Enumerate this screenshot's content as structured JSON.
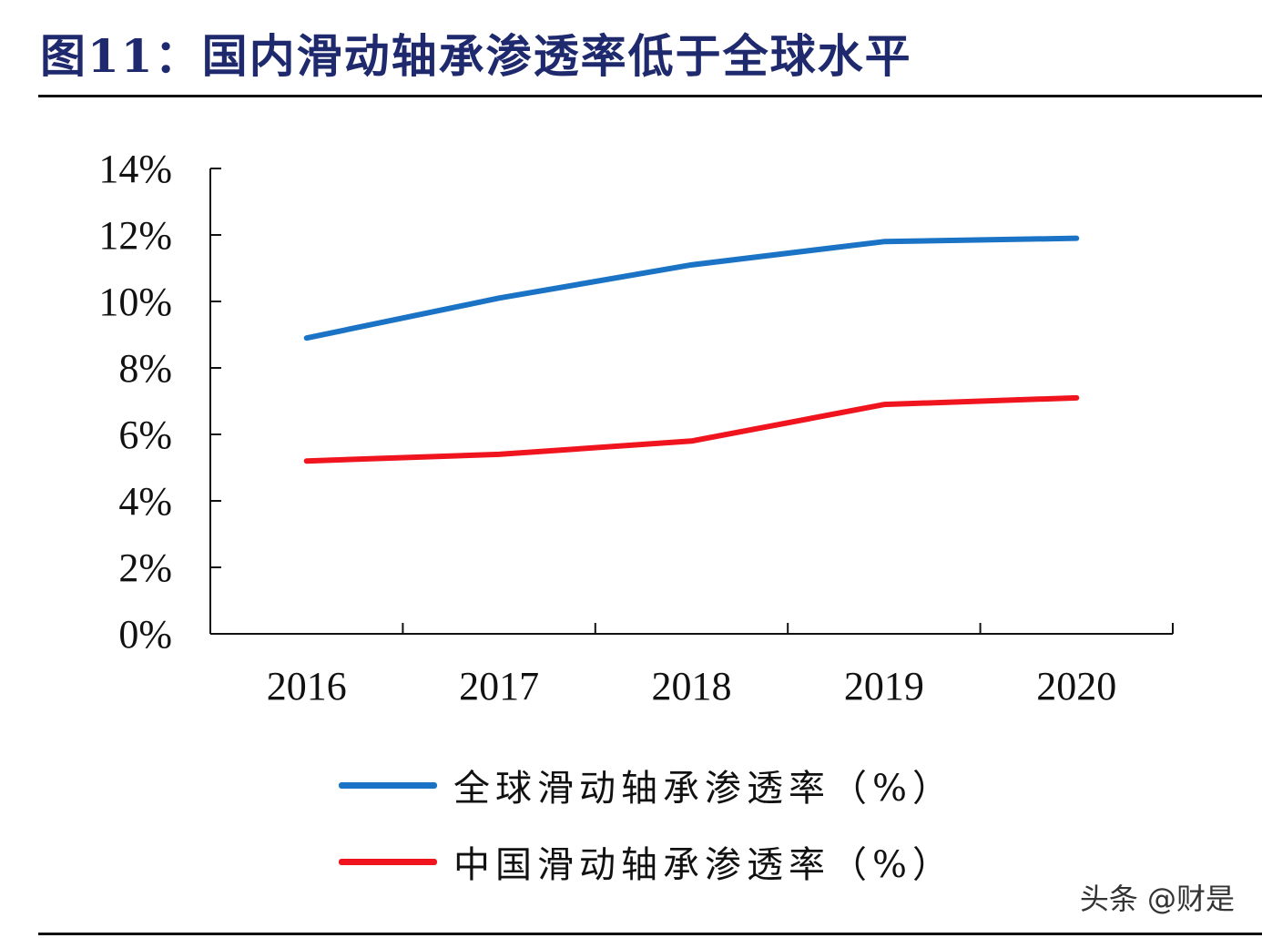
{
  "figure_title": "图11：国内滑动轴承渗透率低于全球水平",
  "watermark": "头条 @财是",
  "colors": {
    "title": "#1f2a6e",
    "global": "#1a73c4",
    "china": "#f0141e",
    "axis": "#111111"
  },
  "chart_data": {
    "type": "line",
    "title": "图11：国内滑动轴承渗透率低于全球水平",
    "categories": [
      "2016",
      "2017",
      "2018",
      "2019",
      "2020"
    ],
    "series": [
      {
        "name": "全球滑动轴承渗透率（%）",
        "color": "#1a73c4",
        "values": [
          8.9,
          10.1,
          11.1,
          11.8,
          11.9
        ]
      },
      {
        "name": "中国滑动轴承渗透率（%）",
        "color": "#f0141e",
        "values": [
          5.2,
          5.4,
          5.8,
          6.9,
          7.1
        ]
      }
    ],
    "ylim": [
      0,
      14
    ],
    "yticks": [
      0,
      2,
      4,
      6,
      8,
      10,
      12,
      14
    ],
    "ytick_labels": [
      "0%",
      "2%",
      "4%",
      "6%",
      "8%",
      "10%",
      "12%",
      "14%"
    ],
    "xlabel": "",
    "ylabel": "",
    "grid": false,
    "legend_position": "bottom"
  }
}
